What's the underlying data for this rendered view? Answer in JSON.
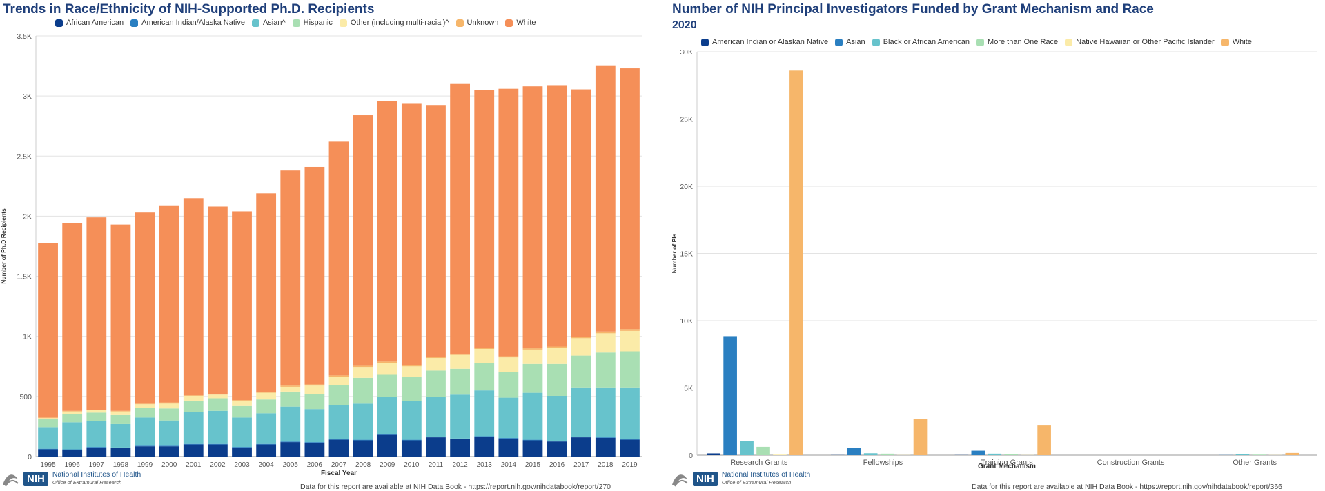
{
  "left": {
    "title": "Trends in Race/Ethnicity of NIH-Supported Ph.D. Recipients",
    "footer": "Data for this report are available at NIH Data Book - https://report.nih.gov/nihdatabook/report/270",
    "logo": {
      "mark": "NIH",
      "line1": "National Institutes of Health",
      "line2": "Office of Extramural Research"
    }
  },
  "right": {
    "title": "Number of NIH Principal Investigators Funded by Grant Mechanism and Race",
    "subtitle": "2020",
    "footer": "Data for this report are available at NIH Data Book - https://report.nih.gov/nihdatabook/report/366",
    "logo": {
      "mark": "NIH",
      "line1": "National Institutes of Health",
      "line2": "Office of Extramural Research"
    }
  },
  "chart_data": [
    {
      "type": "bar",
      "stacked": true,
      "title": "Trends in Race/Ethnicity of NIH-Supported Ph.D. Recipients",
      "xlabel": "Fiscal Year",
      "ylabel": "Number of Ph.D Recipients",
      "ylim": [
        0,
        3500
      ],
      "yticks": [
        0,
        500,
        1000,
        1500,
        2000,
        2500,
        3000,
        3500
      ],
      "ytick_labels": [
        "0",
        "500",
        "1K",
        "1.5K",
        "2K",
        "2.5K",
        "3K",
        "3.5K"
      ],
      "grid": true,
      "categories": [
        "1995",
        "1996",
        "1997",
        "1998",
        "1999",
        "2000",
        "2001",
        "2002",
        "2003",
        "2004",
        "2005",
        "2006",
        "2007",
        "2008",
        "2009",
        "2010",
        "2011",
        "2012",
        "2013",
        "2014",
        "2015",
        "2016",
        "2017",
        "2018",
        "2019"
      ],
      "series": [
        {
          "name": "African American",
          "color": "#0b3d8c",
          "values": [
            60,
            55,
            75,
            70,
            85,
            85,
            100,
            100,
            75,
            100,
            120,
            115,
            140,
            135,
            180,
            135,
            160,
            145,
            165,
            150,
            135,
            125,
            160,
            155,
            140
          ]
        },
        {
          "name": "American Indian/Alaska Native",
          "color": "#2a7fc1",
          "values": [
            5,
            5,
            5,
            5,
            5,
            5,
            5,
            5,
            5,
            5,
            5,
            5,
            5,
            5,
            5,
            5,
            5,
            5,
            5,
            5,
            5,
            5,
            5,
            5,
            5
          ]
        },
        {
          "name": "Asian^",
          "color": "#67c3cc",
          "values": [
            180,
            225,
            215,
            195,
            235,
            210,
            265,
            275,
            245,
            255,
            290,
            275,
            285,
            300,
            310,
            320,
            330,
            365,
            380,
            335,
            390,
            375,
            410,
            415,
            430
          ]
        },
        {
          "name": "Hispanic",
          "color": "#a9dfb3",
          "values": [
            65,
            70,
            70,
            75,
            80,
            100,
            95,
            105,
            95,
            115,
            125,
            125,
            165,
            215,
            185,
            200,
            220,
            215,
            225,
            215,
            240,
            265,
            265,
            290,
            300
          ]
        },
        {
          "name": "Other (including multi-racial)^",
          "color": "#fbeba8",
          "values": [
            10,
            20,
            20,
            30,
            30,
            40,
            40,
            30,
            45,
            55,
            40,
            70,
            70,
            90,
            100,
            90,
            105,
            115,
            120,
            120,
            120,
            135,
            145,
            160,
            170
          ]
        },
        {
          "name": "Unknown",
          "color": "#f6b66a",
          "values": [
            5,
            5,
            5,
            5,
            5,
            10,
            5,
            5,
            5,
            5,
            10,
            10,
            10,
            10,
            10,
            10,
            10,
            10,
            10,
            10,
            10,
            10,
            10,
            15,
            15
          ]
        },
        {
          "name": "White",
          "color": "#f58f58",
          "values": [
            1450,
            1560,
            1600,
            1550,
            1590,
            1640,
            1640,
            1560,
            1570,
            1655,
            1790,
            1810,
            1945,
            2085,
            2165,
            2175,
            2095,
            2245,
            2145,
            2225,
            2180,
            2175,
            2060,
            2215,
            2170
          ]
        }
      ]
    },
    {
      "type": "bar",
      "stacked": false,
      "title": "Number of NIH Principal Investigators Funded by Grant Mechanism and Race",
      "subtitle": "2020",
      "xlabel": "Grant Mechanism",
      "ylabel": "Number of PIs",
      "ylim": [
        0,
        30000
      ],
      "yticks": [
        0,
        5000,
        10000,
        15000,
        20000,
        25000,
        30000
      ],
      "ytick_labels": [
        "0",
        "5K",
        "10K",
        "15K",
        "20K",
        "25K",
        "30K"
      ],
      "grid": true,
      "categories": [
        "Research Grants",
        "Fellowships",
        "Training Grants",
        "Construction Grants",
        "Other Grants"
      ],
      "series": [
        {
          "name": "American Indian or Alaskan Native",
          "color": "#0b3d8c",
          "values": [
            130,
            10,
            10,
            0,
            0
          ]
        },
        {
          "name": "Asian",
          "color": "#2a7fc1",
          "values": [
            8850,
            560,
            330,
            0,
            10
          ]
        },
        {
          "name": "Black or African American",
          "color": "#67c3cc",
          "values": [
            1050,
            140,
            110,
            0,
            60
          ]
        },
        {
          "name": "More than One Race",
          "color": "#a9dfb3",
          "values": [
            620,
            110,
            70,
            0,
            40
          ]
        },
        {
          "name": "Native Hawaiian or Other Pacific Islander",
          "color": "#fbeba8",
          "values": [
            40,
            10,
            10,
            0,
            10
          ]
        },
        {
          "name": "White",
          "color": "#f6b66a",
          "values": [
            28600,
            2700,
            2200,
            0,
            160
          ]
        }
      ]
    }
  ]
}
